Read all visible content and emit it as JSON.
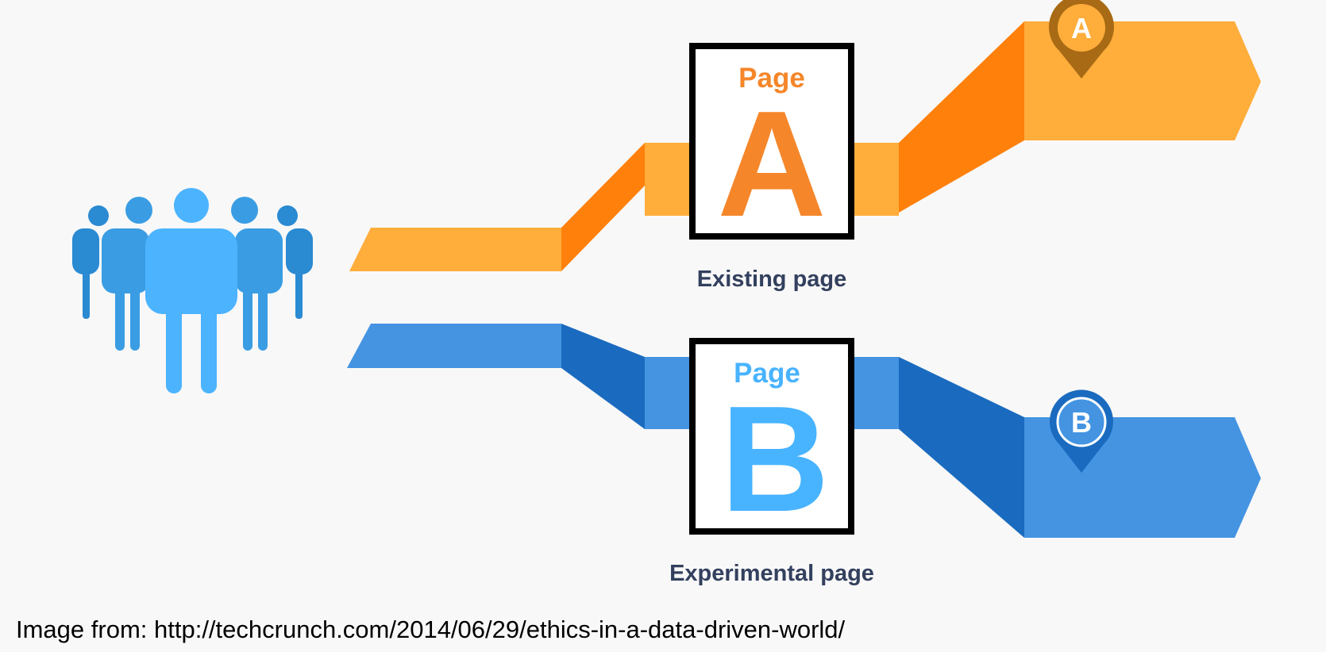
{
  "colors": {
    "background": "#f8f8f8",
    "orange_light": "#ffad3b",
    "orange_dark": "#ff800b",
    "orange_text": "#f5862a",
    "blue_light": "#4494e2",
    "blue_dark": "#1a6bbf",
    "blue_text": "#48b3ff",
    "label_text": "#33405e",
    "pin_a": "#a86a14",
    "pin_b": "#1a6bbf",
    "people_front": "#4cb3ff",
    "people_back": "#2e8ed6"
  },
  "icons": {
    "users": "group-of-people-icon",
    "pin_a": "map-pin-a-icon",
    "pin_b": "map-pin-b-icon"
  },
  "variant_a": {
    "page_word": "Page",
    "letter": "A",
    "caption": "Existing page",
    "pin_letter": "A"
  },
  "variant_b": {
    "page_word": "Page",
    "letter": "B",
    "caption": "Experimental page",
    "pin_letter": "B"
  },
  "source_caption": "Image from: http://techcrunch.com/2014/06/29/ethics-in-a-data-driven-world/"
}
